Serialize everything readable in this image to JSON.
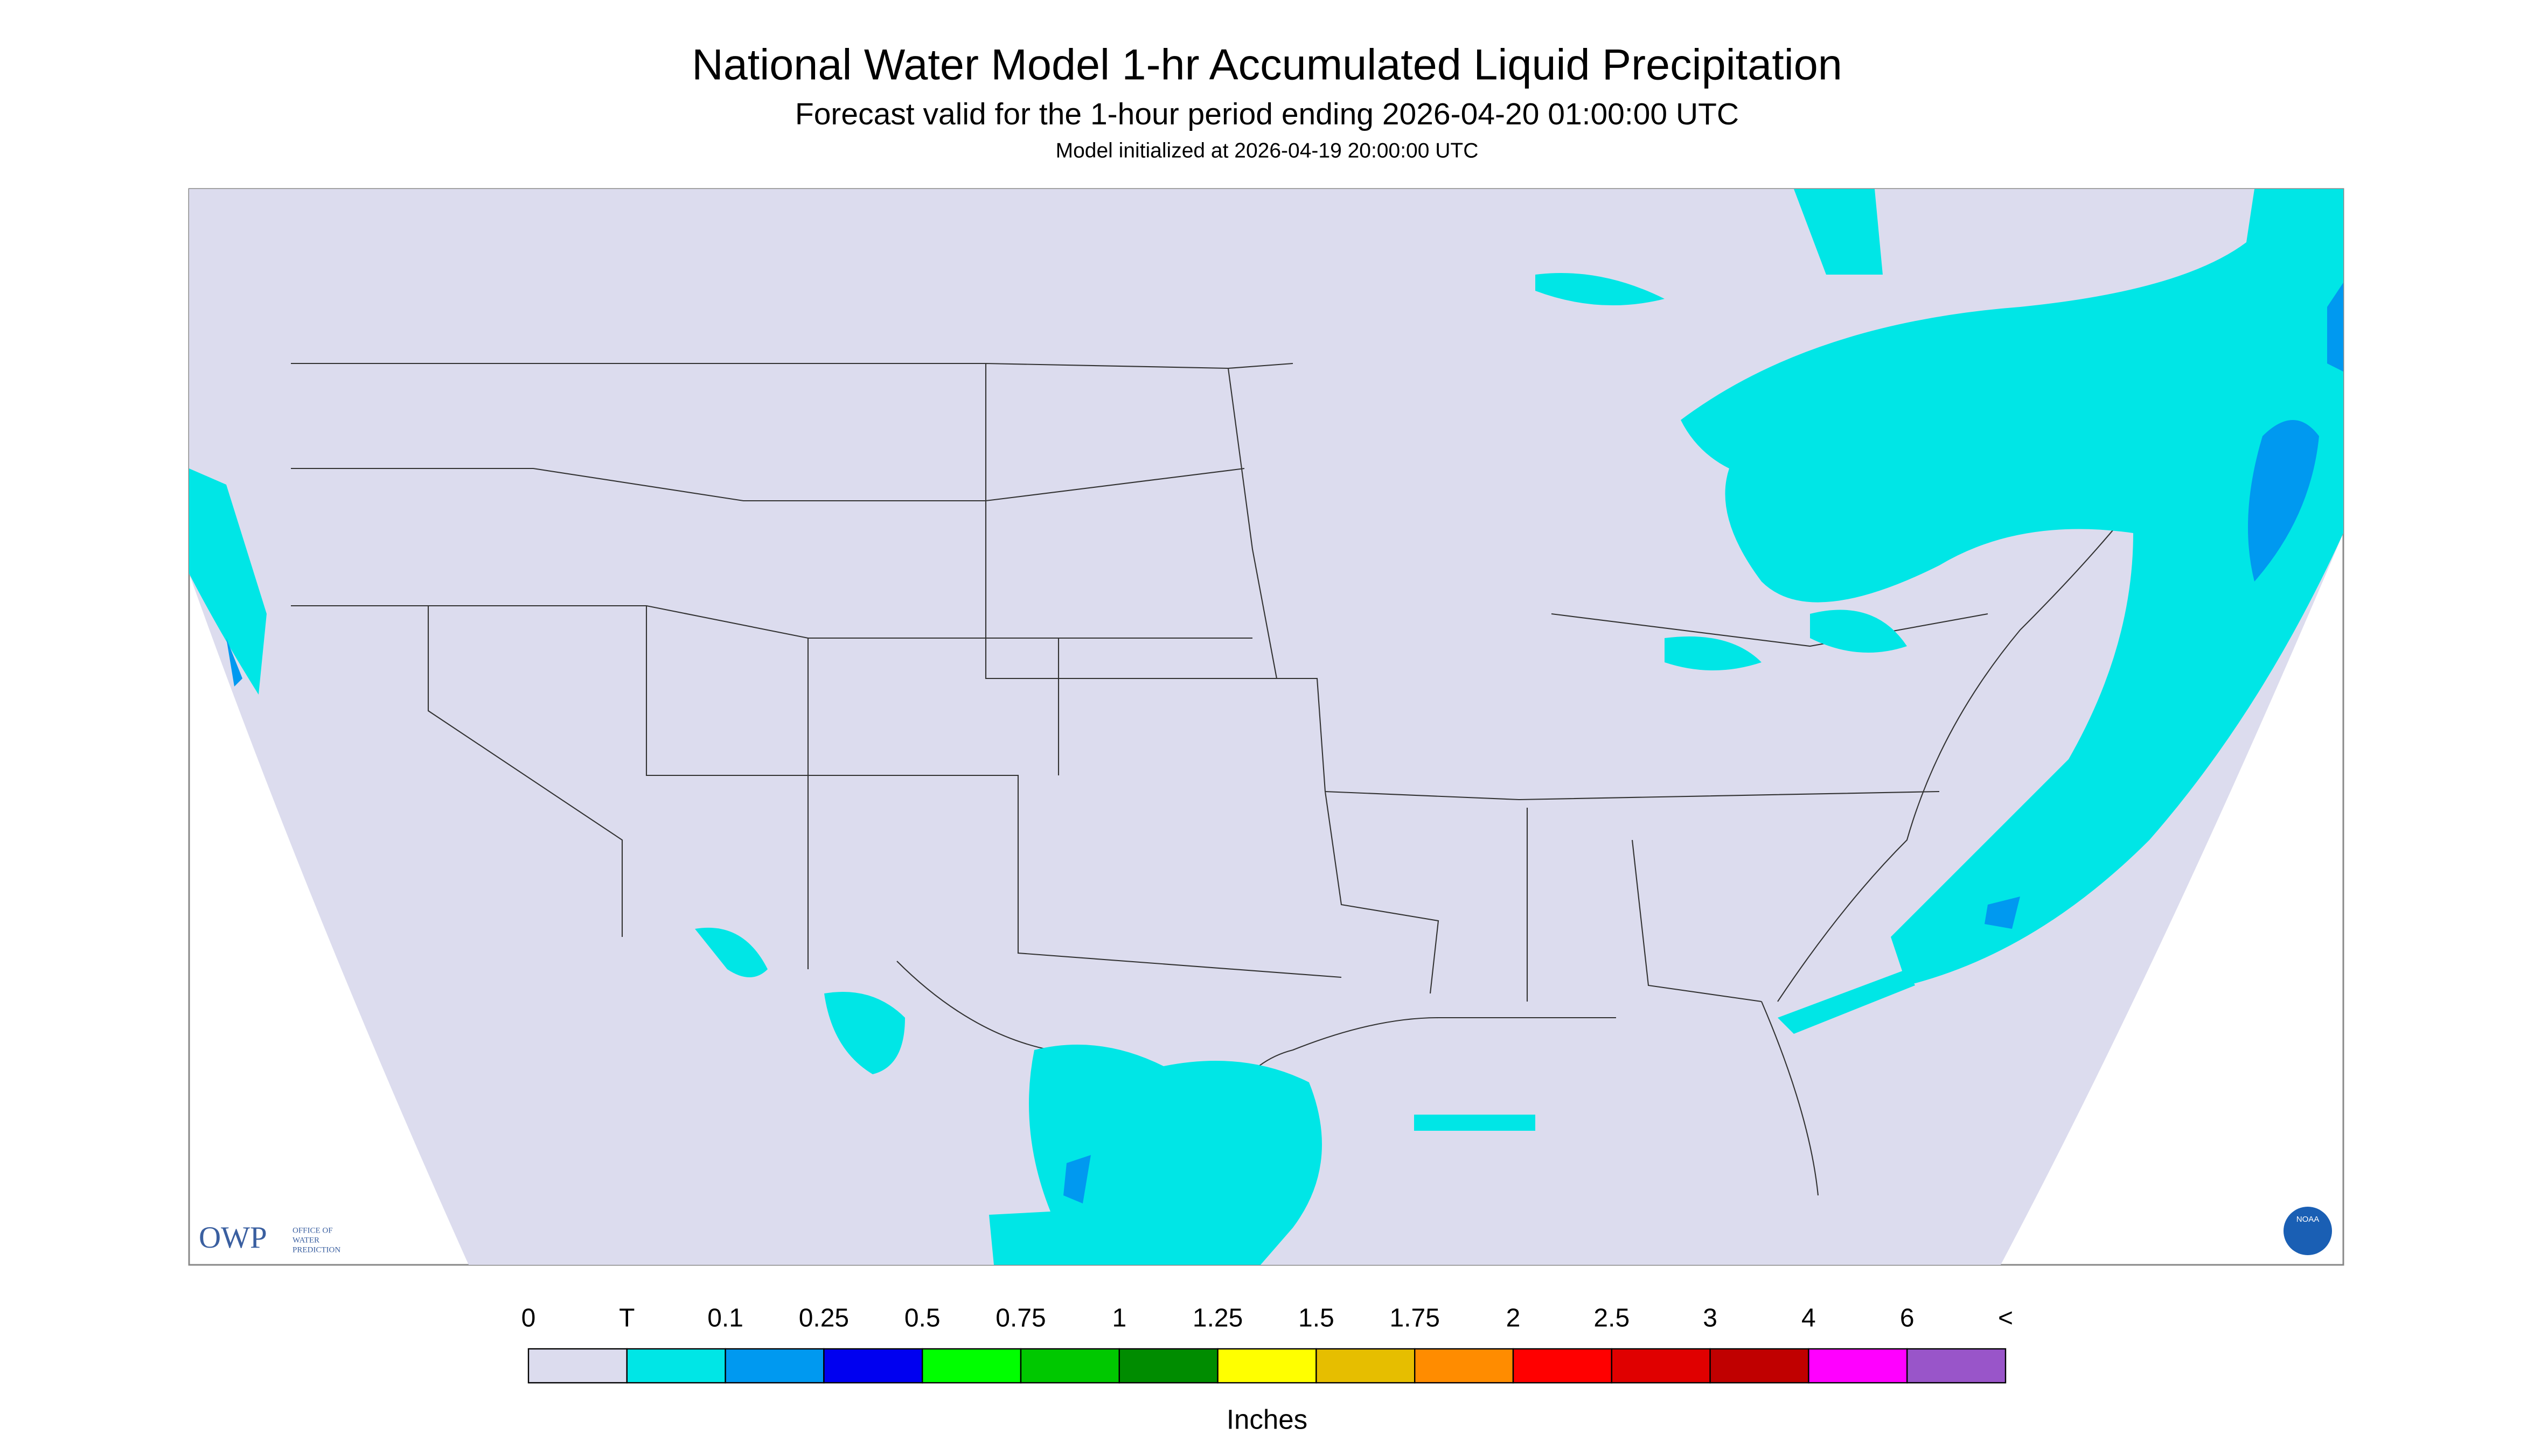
{
  "header": {
    "title": "National Water Model 1-hr Accumulated Liquid Precipitation",
    "subtitle": "Forecast valid for the 1-hour period ending 2026-04-20 01:00:00 UTC",
    "init": "Model initialized at 2026-04-19 20:00:00 UTC"
  },
  "logos": {
    "owp": "OWP",
    "owp_name": [
      "OFFICE OF",
      "WATER",
      "PREDICTION"
    ],
    "noaa": "NOAA"
  },
  "legend": {
    "labels": [
      "0",
      "T",
      "0.1",
      "0.25",
      "0.5",
      "0.75",
      "1",
      "1.25",
      "1.5",
      "1.75",
      "2",
      "2.5",
      "3",
      "4",
      "6",
      "<"
    ],
    "colors": [
      "#dcdcee",
      "#00e6e6",
      "#0099f0",
      "#0000f0",
      "#00ff00",
      "#00c800",
      "#008c00",
      "#ffff00",
      "#e6be00",
      "#ff8c00",
      "#ff0000",
      "#e00000",
      "#c00000",
      "#ff00ff",
      "#9955c9"
    ],
    "unit": "Inches"
  }
}
